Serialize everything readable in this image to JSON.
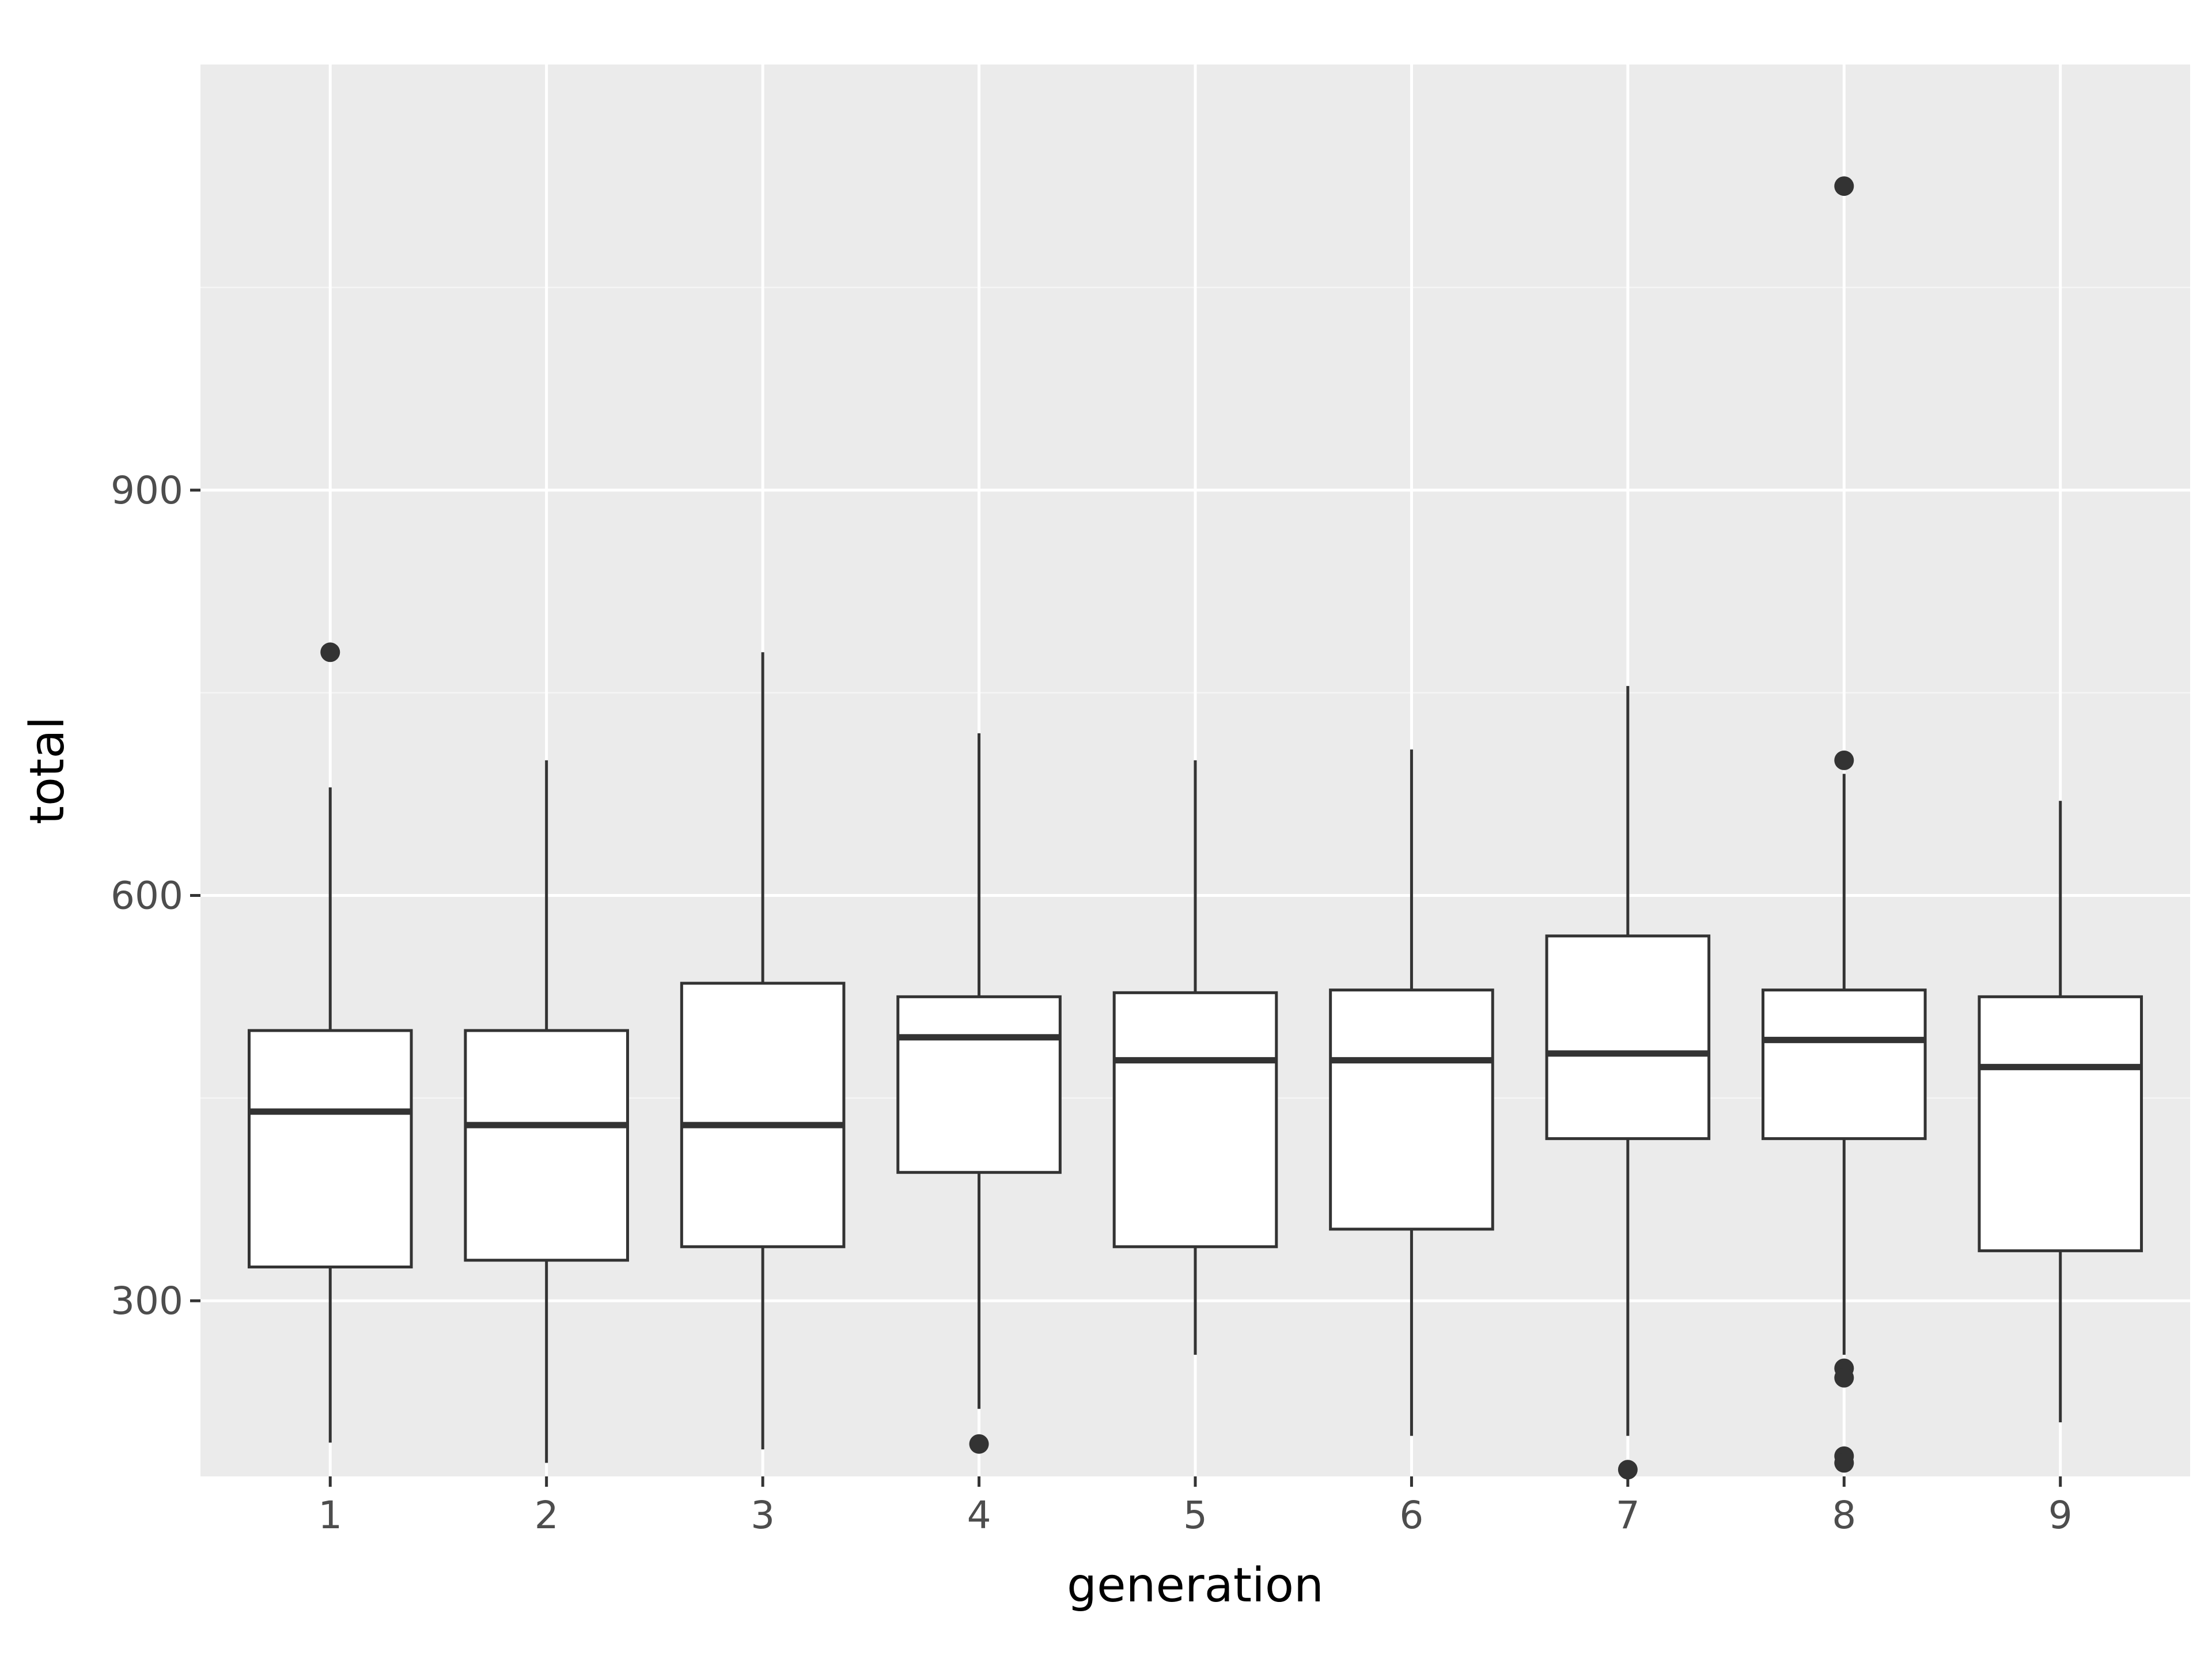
{
  "chart_data": {
    "type": "boxplot",
    "title": "",
    "xlabel": "generation",
    "ylabel": "total",
    "categories": [
      "1",
      "2",
      "3",
      "4",
      "5",
      "6",
      "7",
      "8",
      "9"
    ],
    "ylim": [
      170,
      1215
    ],
    "y_ticks": [
      300,
      600,
      900
    ],
    "y_tick_labels": [
      "300",
      "600",
      "900"
    ],
    "grid": true,
    "legend": "none",
    "boxes": [
      {
        "category": "1",
        "whisker_low": 195,
        "q1": 325,
        "median": 440,
        "q3": 500,
        "whisker_high": 680,
        "outliers": [
          780
        ]
      },
      {
        "category": "2",
        "whisker_low": 180,
        "q1": 330,
        "median": 430,
        "q3": 500,
        "whisker_high": 700,
        "outliers": []
      },
      {
        "category": "3",
        "whisker_low": 190,
        "q1": 340,
        "median": 430,
        "q3": 535,
        "whisker_high": 780,
        "outliers": []
      },
      {
        "category": "4",
        "whisker_low": 220,
        "q1": 395,
        "median": 495,
        "q3": 525,
        "whisker_high": 720,
        "outliers": [
          194
        ]
      },
      {
        "category": "5",
        "whisker_low": 260,
        "q1": 340,
        "median": 478,
        "q3": 528,
        "whisker_high": 700,
        "outliers": []
      },
      {
        "category": "6",
        "whisker_low": 200,
        "q1": 353,
        "median": 478,
        "q3": 530,
        "whisker_high": 708,
        "outliers": []
      },
      {
        "category": "7",
        "whisker_low": 200,
        "q1": 420,
        "median": 483,
        "q3": 570,
        "whisker_high": 755,
        "outliers": [
          175
        ]
      },
      {
        "category": "8",
        "whisker_low": 260,
        "q1": 420,
        "median": 493,
        "q3": 530,
        "whisker_high": 690,
        "outliers": [
          1125,
          700,
          250,
          243,
          185,
          180
        ]
      },
      {
        "category": "9",
        "whisker_low": 210,
        "q1": 337,
        "median": 473,
        "q3": 525,
        "whisker_high": 670,
        "outliers": []
      }
    ]
  },
  "colors": {
    "panel_background": "#EBEBEB",
    "grid_major": "#FFFFFF",
    "grid_minor": "#F5F5F5",
    "box_fill": "#FFFFFF",
    "box_line": "#333333",
    "outlier": "#333333",
    "axis_text": "#4D4D4D",
    "axis_title": "#000000",
    "tick": "#333333"
  }
}
